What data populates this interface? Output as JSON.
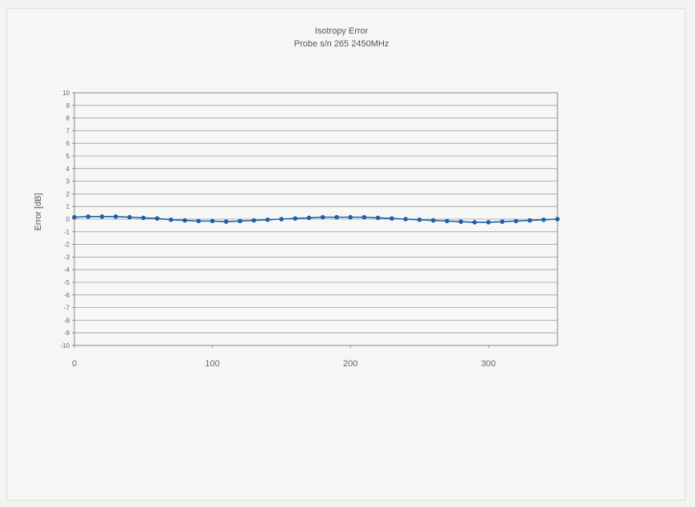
{
  "chart_data": {
    "type": "line",
    "title": "Isotropy Error",
    "subtitle": "Probe s/n 265 2450MHz",
    "xlabel": "",
    "ylabel": "Error [dB]",
    "xlim": [
      0,
      350
    ],
    "ylim": [
      -10,
      10
    ],
    "x_ticks": [
      0,
      100,
      200,
      300
    ],
    "y_ticks": [
      10,
      9,
      8,
      7,
      6,
      5,
      4,
      3,
      2,
      1,
      0,
      -1,
      -2,
      -3,
      -4,
      -5,
      -6,
      -7,
      -8,
      -9,
      -10
    ],
    "grid": true,
    "series": [
      {
        "color": "#1f5fa8",
        "x": [
          0,
          10,
          20,
          30,
          40,
          50,
          60,
          70,
          80,
          90,
          100,
          110,
          120,
          130,
          140,
          150,
          160,
          170,
          180,
          190,
          200,
          210,
          220,
          230,
          240,
          250,
          260,
          270,
          280,
          290,
          300,
          310,
          320,
          330,
          340,
          350
        ],
        "y": [
          0.15,
          0.2,
          0.2,
          0.2,
          0.15,
          0.1,
          0.05,
          -0.05,
          -0.1,
          -0.15,
          -0.15,
          -0.2,
          -0.15,
          -0.1,
          -0.05,
          0.0,
          0.05,
          0.1,
          0.15,
          0.15,
          0.15,
          0.15,
          0.1,
          0.05,
          0.0,
          -0.05,
          -0.1,
          -0.15,
          -0.2,
          -0.25,
          -0.25,
          -0.2,
          -0.15,
          -0.1,
          -0.05,
          0.0
        ]
      }
    ]
  }
}
